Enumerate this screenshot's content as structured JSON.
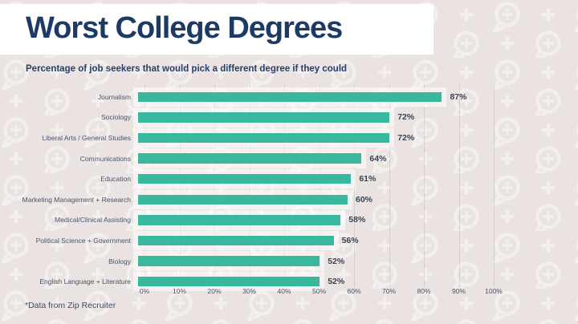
{
  "header": {
    "title": "Worst College Degrees",
    "subtitle": "Percentage of job seekers that would pick a different degree if they could"
  },
  "footnote": "*Data from Zip Recruiter",
  "colors": {
    "background": "#eae3e1",
    "title_band": "#ffffff",
    "navy_text": "#1d3a66",
    "bar_teal": "#38b89c",
    "value_label": "#3a4254"
  },
  "icons": {
    "background_pattern": "speech-bubble-plus-pattern"
  },
  "chart_data": {
    "type": "bar",
    "orientation": "horizontal",
    "title": "Worst College Degrees",
    "subtitle": "Percentage of job seekers that would pick a different degree if they could",
    "categories": [
      "Journalism",
      "Sociology",
      "Liberal Arts / General Studies",
      "Communications",
      "Education",
      "Marketing Management + Research",
      "Medical/Clinical Assisting",
      "Political Science + Government",
      "Biology",
      "English Language + Literature"
    ],
    "values": [
      87,
      72,
      72,
      64,
      61,
      60,
      58,
      56,
      52,
      52
    ],
    "value_labels": [
      "87%",
      "72%",
      "72%",
      "64%",
      "61%",
      "60%",
      "58%",
      "56%",
      "52%",
      "52%"
    ],
    "x_ticks": [
      "0%",
      "10%",
      "20%",
      "30%",
      "40%",
      "50%",
      "60%",
      "70%",
      "80%",
      "90%",
      "100%"
    ],
    "x_tick_values": [
      0,
      10,
      20,
      30,
      40,
      50,
      60,
      70,
      80,
      90,
      100
    ],
    "xlim": [
      0,
      100
    ],
    "grid": "vertical",
    "legend": "none",
    "bar_color": "#38b89c",
    "source_note": "*Data from Zip Recruiter"
  }
}
